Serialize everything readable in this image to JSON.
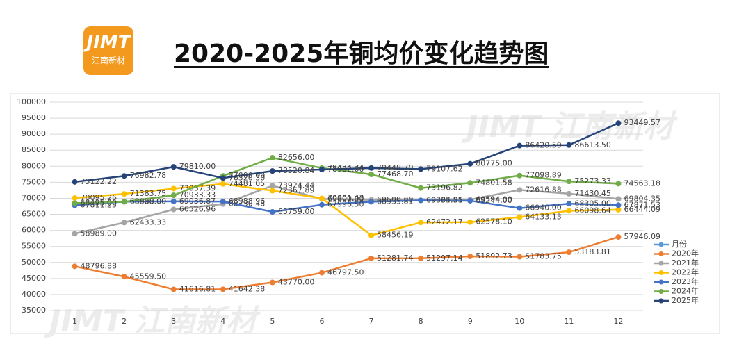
{
  "logo": {
    "mark": "JIMT",
    "name": "江南新材"
  },
  "watermark": "JIMT 江南新材",
  "chart_data": {
    "type": "line",
    "title": "2020-2025年铜均价变化趋势图",
    "categories": [
      "1",
      "2",
      "3",
      "4",
      "5",
      "6",
      "7",
      "8",
      "9",
      "10",
      "11",
      "12"
    ],
    "ylim": [
      35000,
      100000
    ],
    "yticks": [
      35000,
      40000,
      45000,
      50000,
      55000,
      60000,
      65000,
      70000,
      75000,
      80000,
      85000,
      90000,
      95000,
      100000
    ],
    "grid": true,
    "legend": "right",
    "series": [
      {
        "name": "月份",
        "color": "#5b9bd5",
        "values": [
          null,
          null,
          null,
          null,
          null,
          null,
          null,
          null,
          null,
          null,
          null,
          null
        ]
      },
      {
        "name": "2020年",
        "color": "#ed7d31",
        "values": [
          48796.88,
          45559.5,
          41616.81,
          41642.38,
          43770,
          46797.5,
          51281.74,
          51297.14,
          51892.73,
          51783.75,
          53183.81,
          57946.09
        ],
        "value_labels": [
          "48796.88",
          "45559.50",
          "41616.81",
          "41642.38",
          "43770.00",
          "46797.50",
          "51281.74",
          "51297.14",
          "51892.73",
          "51783.75",
          "53183.81",
          "57946.09"
        ]
      },
      {
        "name": "2021年",
        "color": "#a5a5a5",
        "values": [
          58989,
          62433.33,
          66526.96,
          68230.48,
          73924.44,
          69800,
          69500,
          69335.81,
          69594,
          72616.88,
          71430.45,
          69804.35
        ],
        "value_labels": [
          "58989.00",
          "62433.33",
          "66526.96",
          "68230.48",
          "73924.44",
          "69800.00",
          "69500.00",
          "69335.81",
          "69594.00",
          "72616.88",
          "71430.45",
          "69804.35"
        ]
      },
      {
        "name": "2022年",
        "color": "#ffc000",
        "values": [
          70095.26,
          71383.75,
          73037.39,
          74481.05,
          72367.89,
          70001.43,
          58456.19,
          62472.17,
          62578.1,
          64133.13,
          66098.64,
          66444.09
        ],
        "value_labels": [
          "70095.26",
          "71383.75",
          "73037.39",
          "74481.05",
          "72367.89",
          "70001.43",
          "58456.19",
          "62472.17",
          "62578.10",
          "64133.13",
          "66098.64",
          "66444.09"
        ]
      },
      {
        "name": "2023年",
        "color": "#4472c4",
        "values": [
          67811.25,
          68960,
          69036.87,
          68988.96,
          65759,
          67996.5,
          68935.81,
          69364.55,
          69244,
          66940,
          68305,
          67871.53
        ],
        "value_labels": [
          "67811.25",
          "68960.00",
          "69036.87",
          "68988.96",
          "65759.00",
          "67996.50",
          "68935.81",
          "69364.55",
          "69244.00",
          "66940.00",
          "68305.00",
          "67871.53"
        ]
      },
      {
        "name": "2024年",
        "color": "#70ad47",
        "values": [
          68495,
          68898,
          70933.33,
          77000,
          82656,
          79434.74,
          77468.7,
          73196.82,
          74801.58,
          77098.89,
          75273.33,
          74563.18
        ],
        "value_labels": [
          "68495.00",
          "68898.00",
          "70933.33",
          "77000.00",
          "82656.00",
          "79434.74",
          "77468.70",
          "73196.82",
          "74801.58",
          "77098.89",
          "75273.33",
          "74563.18"
        ]
      },
      {
        "name": "2025年",
        "color": "#264478",
        "values": [
          75122.22,
          76982.78,
          79810,
          76320.3,
          78520.84,
          78982,
          79448.7,
          79107.62,
          80775,
          86420.59,
          86613.5,
          93449.57
        ],
        "value_labels": [
          "75122.22",
          "76982.78",
          "79810.00",
          "76320.30",
          "78520.84",
          "78982.00",
          "79448.70",
          "79107.62",
          "80775.00",
          "86420.59",
          "86613.50",
          "93449.57"
        ]
      }
    ]
  }
}
